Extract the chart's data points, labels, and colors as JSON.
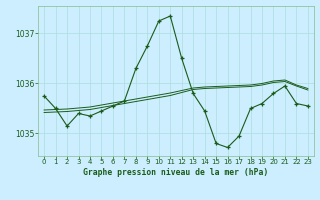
{
  "title": "Graphe pression niveau de la mer (hPa)",
  "background_color": "#cceeff",
  "line_color": "#1a5c1a",
  "grid_color": "#aadddd",
  "ylim": [
    1034.55,
    1037.55
  ],
  "xlim": [
    -0.5,
    23.5
  ],
  "yticks": [
    1035,
    1036,
    1037
  ],
  "xticks": [
    0,
    1,
    2,
    3,
    4,
    5,
    6,
    7,
    8,
    9,
    10,
    11,
    12,
    13,
    14,
    15,
    16,
    17,
    18,
    19,
    20,
    21,
    22,
    23
  ],
  "series1": [
    1035.75,
    1035.5,
    1035.15,
    1035.4,
    1035.35,
    1035.45,
    1035.55,
    1035.65,
    1036.3,
    1036.75,
    1037.25,
    1037.35,
    1036.5,
    1035.8,
    1035.45,
    1034.8,
    1034.72,
    1034.95,
    1035.5,
    1035.6,
    1035.8,
    1035.95,
    1035.6,
    1035.55
  ],
  "series2": [
    1035.42,
    1035.43,
    1035.44,
    1035.46,
    1035.48,
    1035.52,
    1035.56,
    1035.6,
    1035.64,
    1035.68,
    1035.72,
    1035.76,
    1035.82,
    1035.88,
    1035.9,
    1035.91,
    1035.92,
    1035.93,
    1035.94,
    1035.97,
    1036.02,
    1036.04,
    1035.95,
    1035.87
  ],
  "series3": [
    1035.47,
    1035.48,
    1035.49,
    1035.51,
    1035.53,
    1035.57,
    1035.61,
    1035.65,
    1035.69,
    1035.73,
    1035.77,
    1035.81,
    1035.86,
    1035.91,
    1035.93,
    1035.94,
    1035.95,
    1035.96,
    1035.97,
    1036.0,
    1036.05,
    1036.07,
    1035.97,
    1035.9
  ]
}
